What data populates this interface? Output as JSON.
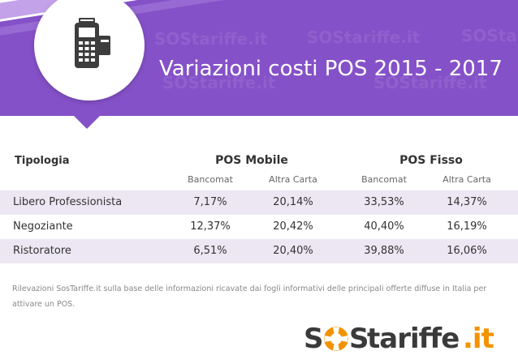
{
  "header": {
    "title": "Variazioni costi POS 2015 - 2017",
    "watermark_text": "SOStariffe.it",
    "colors": {
      "background": "#8551c8",
      "stripe": "#b892e6"
    }
  },
  "table": {
    "type_header": "Tipologia",
    "groups": [
      {
        "name": "POS Mobile",
        "subcolumns": [
          "Bancomat",
          "Altra Carta"
        ]
      },
      {
        "name": "POS Fisso",
        "subcolumns": [
          "Bancomat",
          "Altra Carta"
        ]
      }
    ],
    "rows": [
      {
        "label": "Libero Professionista",
        "values": [
          "7,17%",
          "20,14%",
          "33,53%",
          "14,37%"
        ]
      },
      {
        "label": "Negoziante",
        "values": [
          "12,37%",
          "20,42%",
          "40,40%",
          "16,19%"
        ]
      },
      {
        "label": "Ristoratore",
        "values": [
          "6,51%",
          "20,40%",
          "39,88%",
          "16,06%"
        ]
      }
    ]
  },
  "footnote": "Rilevazioni SosTariffe.it sulla base delle informazioni ricavate dai fogli informativi delle principali offerte diffuse in Italia per attivare un POS.",
  "logo": {
    "letter_s1": "S",
    "letter_s2": "S",
    "word": "tariffe",
    "suffix": ".it",
    "colors": {
      "dark": "#3a3a3a",
      "accent": "#f39200"
    }
  },
  "icon": "pos-terminal-icon"
}
